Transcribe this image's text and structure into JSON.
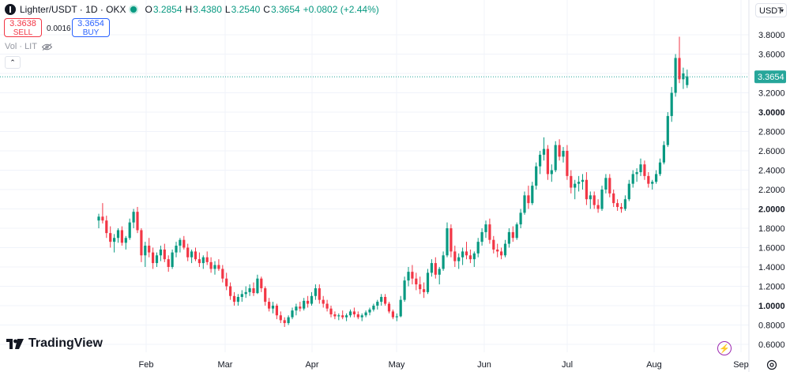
{
  "legend": {
    "symbol": "Lighter/USDT · 1D · OKX",
    "open_label": "O",
    "open": "3.2854",
    "high_label": "H",
    "high": "3.4380",
    "low_label": "L",
    "low": "3.2540",
    "close_label": "C",
    "close": "3.3654",
    "change": "+0.0802 (+2.44%)"
  },
  "trade": {
    "sell_price": "3.3638",
    "sell_label": "SELL",
    "buy_price": "3.3654",
    "buy_label": "BUY",
    "spread": "0.0016"
  },
  "indicator": {
    "label": "Vol · LIT"
  },
  "toolbar": {
    "currency": "USDT",
    "collapse_glyph": "⌃"
  },
  "brand": {
    "name": "TradingView"
  },
  "colors": {
    "up": "#089981",
    "down": "#f23645",
    "grid": "#f0f3fa",
    "last_price": "#26a69a"
  },
  "icons": [
    "logo-icon",
    "eye-icon",
    "chevron-down-icon",
    "tradingview-logo-icon",
    "lightning-icon",
    "settings-icon"
  ],
  "chart_data": {
    "type": "candlestick",
    "interval": "1D",
    "ylim": [
      0.6,
      3.8
    ],
    "y_ticks": [
      "3.8000",
      "3.6000",
      "3.4000",
      "3.2000",
      "3.0000",
      "2.8000",
      "2.6000",
      "2.4000",
      "2.2000",
      "2.0000",
      "1.8000",
      "1.6000",
      "1.4000",
      "1.2000",
      "1.0000",
      "0.8000",
      "0.6000"
    ],
    "x_ticks": [
      "Feb",
      "Mar",
      "Apr",
      "May",
      "Jun",
      "Jul",
      "Aug",
      "Sep"
    ],
    "last_price": "3.3654",
    "ohlc_start_day": 0,
    "ohlc": [
      [
        1.88,
        1.95,
        1.8,
        1.92
      ],
      [
        1.92,
        2.06,
        1.85,
        1.88
      ],
      [
        1.88,
        1.93,
        1.7,
        1.75
      ],
      [
        1.75,
        1.82,
        1.6,
        1.66
      ],
      [
        1.66,
        1.74,
        1.55,
        1.7
      ],
      [
        1.7,
        1.8,
        1.65,
        1.78
      ],
      [
        1.78,
        1.82,
        1.62,
        1.65
      ],
      [
        1.65,
        1.72,
        1.58,
        1.7
      ],
      [
        1.7,
        1.9,
        1.68,
        1.86
      ],
      [
        1.86,
        2.0,
        1.8,
        1.97
      ],
      [
        1.97,
        2.02,
        1.75,
        1.78
      ],
      [
        1.78,
        1.8,
        1.45,
        1.52
      ],
      [
        1.52,
        1.66,
        1.4,
        1.62
      ],
      [
        1.62,
        1.7,
        1.5,
        1.55
      ],
      [
        1.55,
        1.6,
        1.38,
        1.44
      ],
      [
        1.44,
        1.55,
        1.4,
        1.52
      ],
      [
        1.52,
        1.62,
        1.46,
        1.58
      ],
      [
        1.58,
        1.64,
        1.45,
        1.48
      ],
      [
        1.48,
        1.52,
        1.35,
        1.4
      ],
      [
        1.4,
        1.58,
        1.38,
        1.55
      ],
      [
        1.55,
        1.66,
        1.5,
        1.62
      ],
      [
        1.62,
        1.7,
        1.55,
        1.68
      ],
      [
        1.68,
        1.72,
        1.58,
        1.6
      ],
      [
        1.6,
        1.64,
        1.46,
        1.5
      ],
      [
        1.5,
        1.58,
        1.44,
        1.56
      ],
      [
        1.56,
        1.6,
        1.46,
        1.48
      ],
      [
        1.48,
        1.55,
        1.4,
        1.44
      ],
      [
        1.44,
        1.52,
        1.38,
        1.5
      ],
      [
        1.5,
        1.56,
        1.42,
        1.45
      ],
      [
        1.45,
        1.5,
        1.34,
        1.38
      ],
      [
        1.38,
        1.46,
        1.32,
        1.42
      ],
      [
        1.42,
        1.48,
        1.36,
        1.38
      ],
      [
        1.38,
        1.42,
        1.24,
        1.28
      ],
      [
        1.28,
        1.34,
        1.16,
        1.2
      ],
      [
        1.2,
        1.24,
        1.06,
        1.1
      ],
      [
        1.1,
        1.14,
        1.0,
        1.04
      ],
      [
        1.04,
        1.12,
        1.0,
        1.09
      ],
      [
        1.09,
        1.16,
        1.04,
        1.12
      ],
      [
        1.12,
        1.2,
        1.08,
        1.14
      ],
      [
        1.14,
        1.22,
        1.1,
        1.18
      ],
      [
        1.18,
        1.24,
        1.1,
        1.13
      ],
      [
        1.13,
        1.32,
        1.12,
        1.28
      ],
      [
        1.28,
        1.3,
        1.14,
        1.18
      ],
      [
        1.18,
        1.2,
        1.0,
        1.04
      ],
      [
        1.04,
        1.08,
        0.94,
        0.97
      ],
      [
        0.97,
        1.04,
        0.92,
        1.0
      ],
      [
        1.0,
        1.02,
        0.86,
        0.9
      ],
      [
        0.9,
        0.94,
        0.82,
        0.85
      ],
      [
        0.85,
        0.88,
        0.78,
        0.82
      ],
      [
        0.82,
        0.9,
        0.8,
        0.88
      ],
      [
        0.88,
        0.98,
        0.86,
        0.95
      ],
      [
        0.95,
        1.02,
        0.9,
        0.99
      ],
      [
        0.99,
        1.04,
        0.94,
        0.97
      ],
      [
        0.97,
        1.08,
        0.95,
        1.05
      ],
      [
        1.05,
        1.1,
        0.98,
        1.02
      ],
      [
        1.02,
        1.14,
        1.0,
        1.1
      ],
      [
        1.1,
        1.22,
        1.06,
        1.18
      ],
      [
        1.18,
        1.22,
        1.02,
        1.06
      ],
      [
        1.06,
        1.1,
        0.98,
        1.02
      ],
      [
        1.02,
        1.06,
        0.94,
        0.97
      ],
      [
        0.97,
        1.0,
        0.88,
        0.91
      ],
      [
        0.91,
        0.94,
        0.86,
        0.89
      ],
      [
        0.89,
        0.92,
        0.85,
        0.9
      ],
      [
        0.9,
        0.95,
        0.86,
        0.88
      ],
      [
        0.88,
        0.92,
        0.84,
        0.9
      ],
      [
        0.9,
        0.96,
        0.88,
        0.94
      ],
      [
        0.94,
        0.98,
        0.88,
        0.91
      ],
      [
        0.91,
        0.94,
        0.86,
        0.88
      ],
      [
        0.88,
        0.92,
        0.84,
        0.9
      ],
      [
        0.9,
        0.95,
        0.88,
        0.93
      ],
      [
        0.93,
        0.98,
        0.9,
        0.96
      ],
      [
        0.96,
        1.02,
        0.94,
        1.0
      ],
      [
        1.0,
        1.06,
        0.96,
        1.04
      ],
      [
        1.04,
        1.12,
        1.0,
        1.09
      ],
      [
        1.09,
        1.12,
        1.0,
        1.02
      ],
      [
        1.02,
        1.04,
        0.92,
        0.94
      ],
      [
        0.94,
        0.96,
        0.86,
        0.88
      ],
      [
        0.88,
        0.92,
        0.84,
        0.89
      ],
      [
        0.89,
        1.1,
        0.88,
        1.06
      ],
      [
        1.06,
        1.3,
        1.04,
        1.26
      ],
      [
        1.26,
        1.4,
        1.2,
        1.35
      ],
      [
        1.35,
        1.42,
        1.22,
        1.28
      ],
      [
        1.28,
        1.34,
        1.16,
        1.22
      ],
      [
        1.22,
        1.3,
        1.12,
        1.17
      ],
      [
        1.17,
        1.24,
        1.08,
        1.14
      ],
      [
        1.14,
        1.38,
        1.12,
        1.34
      ],
      [
        1.34,
        1.48,
        1.3,
        1.44
      ],
      [
        1.44,
        1.5,
        1.28,
        1.32
      ],
      [
        1.32,
        1.4,
        1.22,
        1.38
      ],
      [
        1.38,
        1.56,
        1.36,
        1.52
      ],
      [
        1.52,
        1.86,
        1.5,
        1.8
      ],
      [
        1.8,
        1.84,
        1.5,
        1.56
      ],
      [
        1.56,
        1.62,
        1.4,
        1.46
      ],
      [
        1.46,
        1.54,
        1.38,
        1.5
      ],
      [
        1.5,
        1.6,
        1.42,
        1.56
      ],
      [
        1.56,
        1.66,
        1.48,
        1.52
      ],
      [
        1.52,
        1.58,
        1.44,
        1.48
      ],
      [
        1.48,
        1.56,
        1.4,
        1.54
      ],
      [
        1.54,
        1.7,
        1.5,
        1.66
      ],
      [
        1.66,
        1.8,
        1.62,
        1.76
      ],
      [
        1.76,
        1.88,
        1.7,
        1.84
      ],
      [
        1.84,
        1.9,
        1.64,
        1.68
      ],
      [
        1.68,
        1.72,
        1.54,
        1.58
      ],
      [
        1.58,
        1.64,
        1.5,
        1.56
      ],
      [
        1.56,
        1.6,
        1.48,
        1.52
      ],
      [
        1.52,
        1.68,
        1.5,
        1.64
      ],
      [
        1.64,
        1.8,
        1.6,
        1.76
      ],
      [
        1.76,
        1.82,
        1.66,
        1.7
      ],
      [
        1.7,
        1.86,
        1.68,
        1.84
      ],
      [
        1.84,
        2.0,
        1.8,
        1.96
      ],
      [
        1.96,
        2.18,
        1.94,
        2.14
      ],
      [
        2.14,
        2.24,
        2.0,
        2.06
      ],
      [
        2.06,
        2.28,
        2.04,
        2.24
      ],
      [
        2.24,
        2.48,
        2.2,
        2.44
      ],
      [
        2.44,
        2.6,
        2.36,
        2.56
      ],
      [
        2.56,
        2.74,
        2.5,
        2.62
      ],
      [
        2.62,
        2.66,
        2.3,
        2.36
      ],
      [
        2.36,
        2.46,
        2.28,
        2.4
      ],
      [
        2.4,
        2.7,
        2.38,
        2.66
      ],
      [
        2.66,
        2.72,
        2.5,
        2.54
      ],
      [
        2.54,
        2.64,
        2.48,
        2.6
      ],
      [
        2.6,
        2.66,
        2.3,
        2.34
      ],
      [
        2.34,
        2.4,
        2.16,
        2.22
      ],
      [
        2.22,
        2.3,
        2.1,
        2.26
      ],
      [
        2.26,
        2.34,
        2.18,
        2.28
      ],
      [
        2.28,
        2.36,
        2.2,
        2.3
      ],
      [
        2.3,
        2.38,
        2.04,
        2.1
      ],
      [
        2.1,
        2.18,
        2.0,
        2.14
      ],
      [
        2.14,
        2.18,
        2.0,
        2.04
      ],
      [
        2.04,
        2.1,
        1.96,
        2.0
      ],
      [
        2.0,
        2.24,
        1.98,
        2.2
      ],
      [
        2.2,
        2.36,
        2.16,
        2.32
      ],
      [
        2.32,
        2.36,
        2.12,
        2.16
      ],
      [
        2.16,
        2.2,
        2.02,
        2.06
      ],
      [
        2.06,
        2.1,
        1.98,
        2.02
      ],
      [
        2.02,
        2.06,
        1.96,
        2.0
      ],
      [
        2.0,
        2.14,
        1.98,
        2.1
      ],
      [
        2.1,
        2.3,
        2.08,
        2.26
      ],
      [
        2.26,
        2.4,
        2.22,
        2.36
      ],
      [
        2.36,
        2.42,
        2.28,
        2.38
      ],
      [
        2.38,
        2.52,
        2.34,
        2.46
      ],
      [
        2.46,
        2.5,
        2.3,
        2.34
      ],
      [
        2.34,
        2.38,
        2.22,
        2.26
      ],
      [
        2.26,
        2.3,
        2.2,
        2.28
      ],
      [
        2.28,
        2.4,
        2.26,
        2.36
      ],
      [
        2.36,
        2.52,
        2.34,
        2.48
      ],
      [
        2.48,
        2.7,
        2.46,
        2.66
      ],
      [
        2.66,
        3.0,
        2.64,
        2.96
      ],
      [
        2.96,
        3.26,
        2.9,
        3.2
      ],
      [
        3.2,
        3.6,
        3.16,
        3.56
      ],
      [
        3.56,
        3.78,
        3.3,
        3.34
      ],
      [
        3.34,
        3.46,
        3.24,
        3.4
      ],
      [
        3.28,
        3.44,
        3.25,
        3.37
      ]
    ]
  }
}
